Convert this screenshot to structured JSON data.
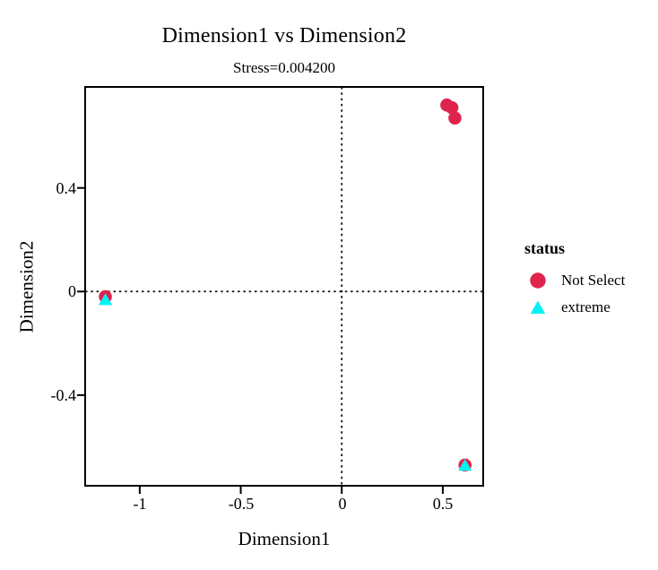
{
  "colors": {
    "not_select": "#E0234C",
    "extreme": "#00F2F2",
    "axis": "#000000",
    "reference_line": "#111111"
  },
  "chart_data": {
    "type": "scatter",
    "title": "Dimension1 vs Dimension2",
    "subtitle": "Stress=0.004200",
    "xlabel": "Dimension1",
    "ylabel": "Dimension2",
    "xlim": [
      -1.27,
      0.7
    ],
    "ylim": [
      -0.75,
      0.79
    ],
    "x_ticks": [
      -1,
      -0.5,
      0,
      0.5
    ],
    "y_ticks": [
      0.4,
      0,
      -0.4
    ],
    "grid": false,
    "reference_lines": {
      "x": 0,
      "y": 0,
      "style": "dotted"
    },
    "legend_position": "right",
    "legend_title": "status",
    "series": [
      {
        "name": "Not Select",
        "marker": "circle",
        "color": "#E0234C",
        "points": [
          [
            0.52,
            0.72
          ],
          [
            0.545,
            0.71
          ],
          [
            0.56,
            0.67
          ],
          [
            0.61,
            -0.67
          ],
          [
            -1.17,
            -0.02
          ]
        ]
      },
      {
        "name": "extreme",
        "marker": "triangle",
        "color": "#00F2F2",
        "points": [
          [
            -1.17,
            -0.03
          ],
          [
            0.61,
            -0.67
          ]
        ]
      }
    ]
  }
}
